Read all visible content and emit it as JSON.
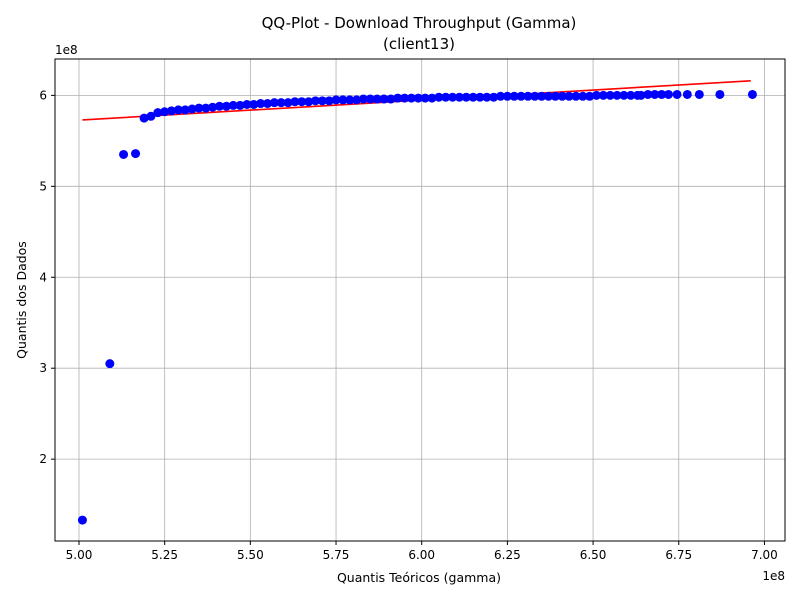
{
  "chart_data": {
    "type": "scatter",
    "title_line1": "QQ-Plot - Download Throughput (Gamma)",
    "title_line2": "(client13)",
    "xlabel": "Quantis Teóricos (gamma)",
    "ylabel": "Quantis dos Dados",
    "x_offset_label": "1e8",
    "y_offset_label": "1e8",
    "xlim": [
      4.93,
      7.06
    ],
    "ylim": [
      1.1,
      6.4
    ],
    "x_ticks": [
      5.0,
      5.25,
      5.5,
      5.75,
      6.0,
      6.25,
      6.5,
      6.75,
      7.0
    ],
    "x_tick_labels": [
      "5.00",
      "5.25",
      "5.50",
      "5.75",
      "6.00",
      "6.25",
      "6.50",
      "6.75",
      "7.00"
    ],
    "y_ticks": [
      2,
      3,
      4,
      5,
      6
    ],
    "y_tick_labels": [
      "2",
      "3",
      "4",
      "5",
      "6"
    ],
    "grid": true,
    "points_color": "#0000ff",
    "line_color": "#ff0000",
    "fit_line": {
      "x": [
        5.01,
        6.96
      ],
      "y": [
        5.73,
        6.16
      ]
    },
    "points": [
      [
        5.01,
        1.33
      ],
      [
        5.09,
        3.05
      ],
      [
        5.13,
        5.35
      ],
      [
        5.165,
        5.36
      ],
      [
        5.19,
        5.75
      ],
      [
        5.21,
        5.77
      ],
      [
        5.23,
        5.81
      ],
      [
        5.25,
        5.82
      ],
      [
        5.27,
        5.83
      ],
      [
        5.29,
        5.84
      ],
      [
        5.31,
        5.84
      ],
      [
        5.33,
        5.85
      ],
      [
        5.35,
        5.86
      ],
      [
        5.37,
        5.86
      ],
      [
        5.39,
        5.87
      ],
      [
        5.41,
        5.88
      ],
      [
        5.43,
        5.88
      ],
      [
        5.45,
        5.89
      ],
      [
        5.47,
        5.89
      ],
      [
        5.49,
        5.9
      ],
      [
        5.51,
        5.9
      ],
      [
        5.53,
        5.91
      ],
      [
        5.55,
        5.91
      ],
      [
        5.57,
        5.92
      ],
      [
        5.59,
        5.92
      ],
      [
        5.61,
        5.92
      ],
      [
        5.63,
        5.93
      ],
      [
        5.65,
        5.93
      ],
      [
        5.67,
        5.93
      ],
      [
        5.69,
        5.94
      ],
      [
        5.71,
        5.94
      ],
      [
        5.73,
        5.94
      ],
      [
        5.75,
        5.95
      ],
      [
        5.77,
        5.95
      ],
      [
        5.79,
        5.95
      ],
      [
        5.81,
        5.95
      ],
      [
        5.83,
        5.96
      ],
      [
        5.85,
        5.96
      ],
      [
        5.87,
        5.96
      ],
      [
        5.89,
        5.96
      ],
      [
        5.91,
        5.96
      ],
      [
        5.93,
        5.97
      ],
      [
        5.95,
        5.97
      ],
      [
        5.97,
        5.97
      ],
      [
        5.99,
        5.97
      ],
      [
        6.01,
        5.97
      ],
      [
        6.03,
        5.97
      ],
      [
        6.05,
        5.98
      ],
      [
        6.07,
        5.98
      ],
      [
        6.09,
        5.98
      ],
      [
        6.11,
        5.98
      ],
      [
        6.13,
        5.98
      ],
      [
        6.15,
        5.98
      ],
      [
        6.17,
        5.98
      ],
      [
        6.19,
        5.98
      ],
      [
        6.21,
        5.98
      ],
      [
        6.23,
        5.99
      ],
      [
        6.25,
        5.99
      ],
      [
        6.27,
        5.99
      ],
      [
        6.29,
        5.99
      ],
      [
        6.31,
        5.99
      ],
      [
        6.33,
        5.99
      ],
      [
        6.35,
        5.99
      ],
      [
        6.37,
        5.99
      ],
      [
        6.39,
        5.99
      ],
      [
        6.41,
        5.99
      ],
      [
        6.43,
        5.99
      ],
      [
        6.45,
        5.99
      ],
      [
        6.47,
        5.99
      ],
      [
        6.49,
        5.99
      ],
      [
        6.51,
        6.0
      ],
      [
        6.53,
        6.0
      ],
      [
        6.55,
        6.0
      ],
      [
        6.57,
        6.0
      ],
      [
        6.59,
        6.0
      ],
      [
        6.61,
        6.0
      ],
      [
        6.63,
        6.0
      ],
      [
        6.64,
        6.0
      ],
      [
        6.66,
        6.01
      ],
      [
        6.68,
        6.01
      ],
      [
        6.7,
        6.01
      ],
      [
        6.72,
        6.01
      ],
      [
        6.745,
        6.01
      ],
      [
        6.775,
        6.01
      ],
      [
        6.81,
        6.01
      ],
      [
        6.87,
        6.01
      ],
      [
        6.965,
        6.01
      ]
    ]
  }
}
